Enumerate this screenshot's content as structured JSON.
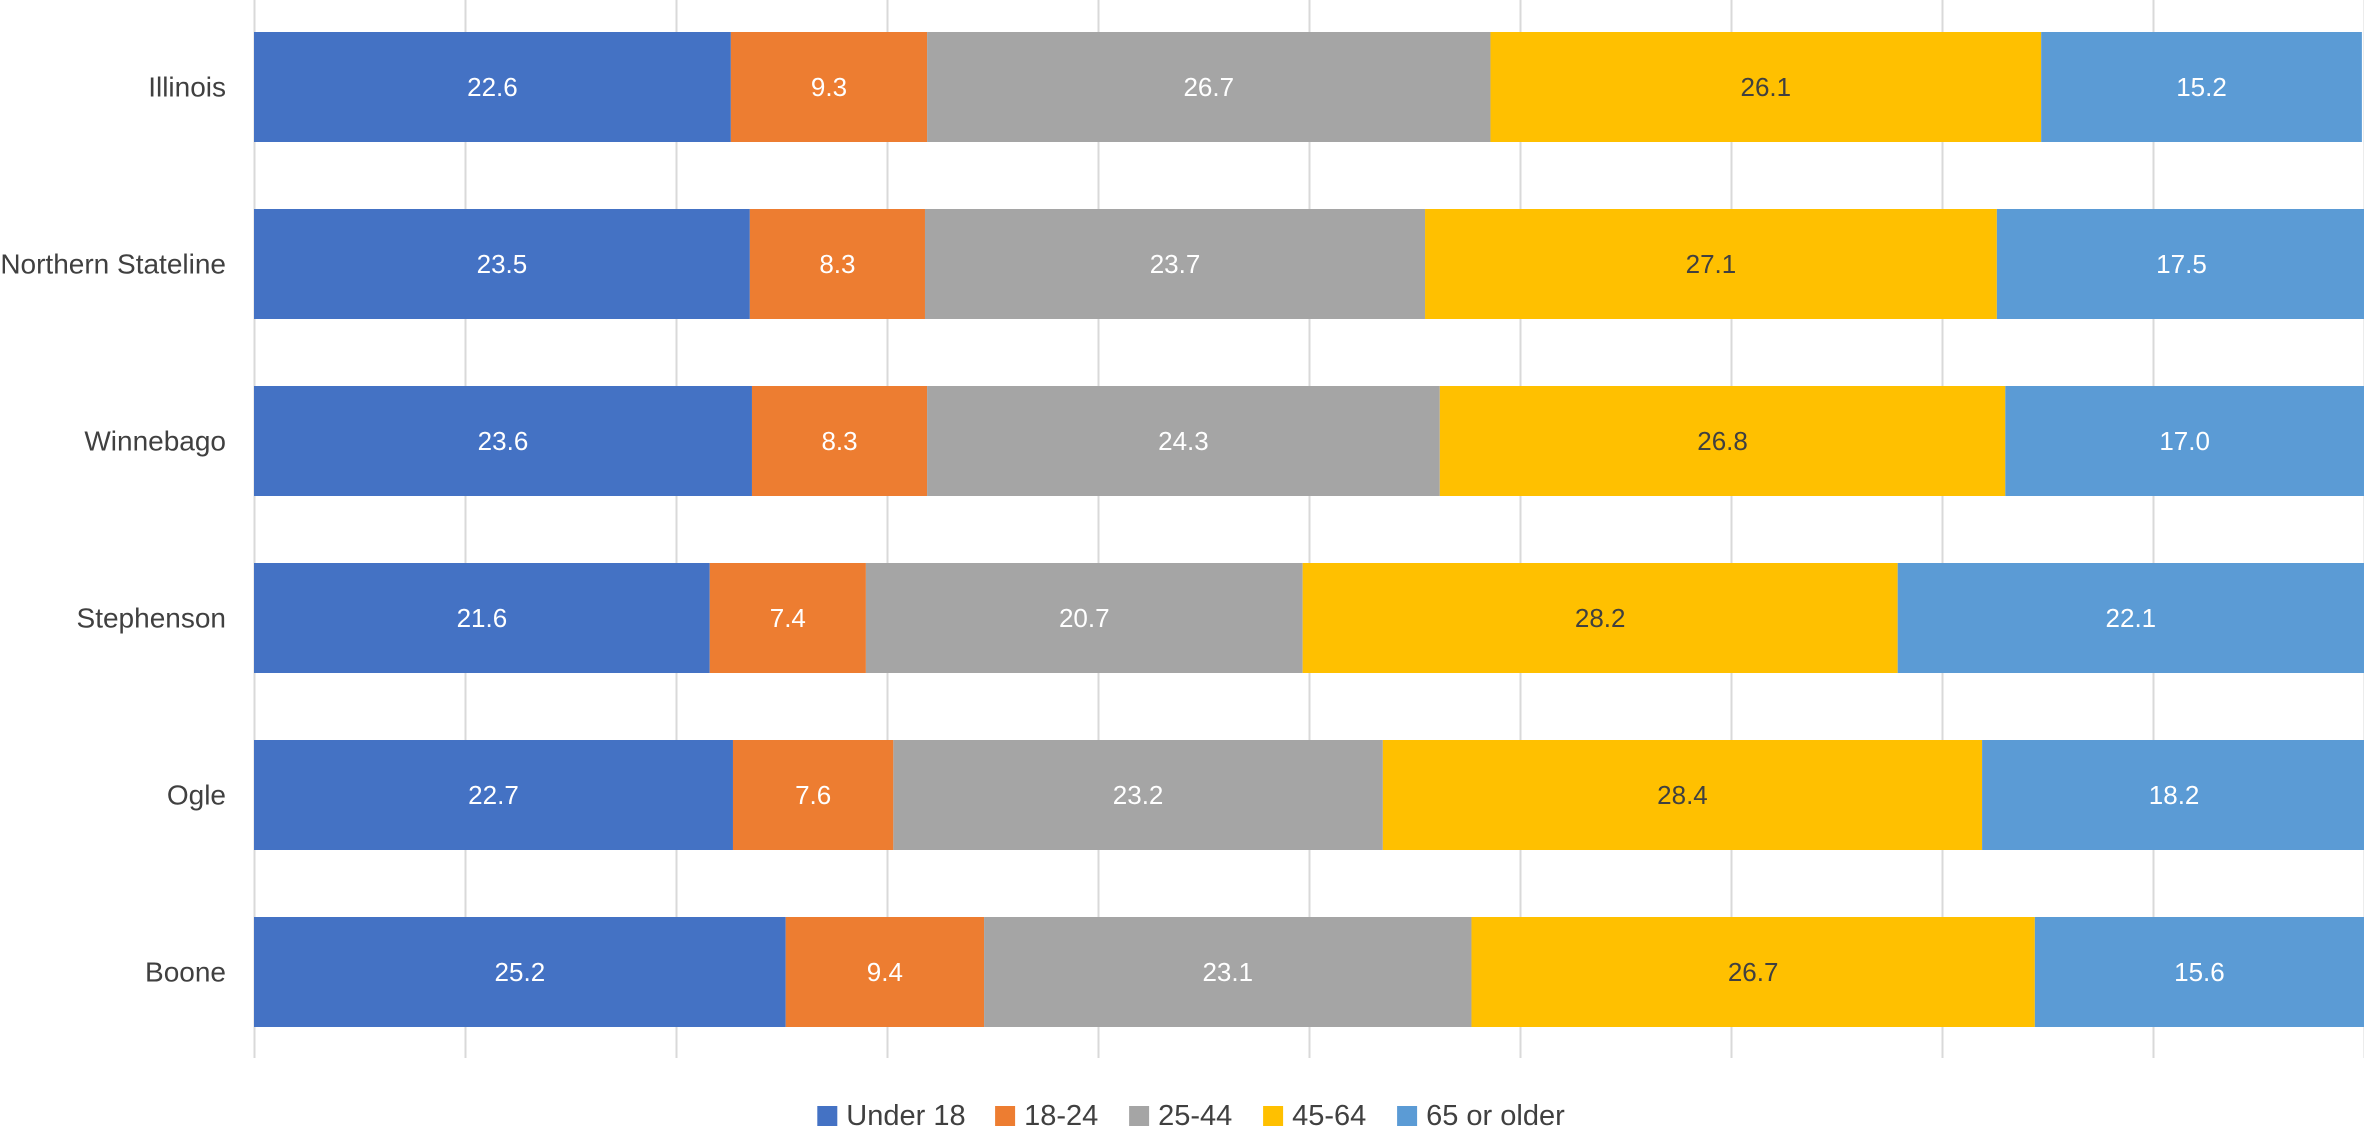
{
  "chart_data": {
    "type": "bar",
    "orientation": "horizontal",
    "stacked": true,
    "categories": [
      "Illinois",
      "Northern Stateline",
      "Winnebago",
      "Stephenson",
      "Ogle",
      "Boone"
    ],
    "series": [
      {
        "name": "Under 18",
        "color": "#4472C4",
        "label_color": "#FFFFFF",
        "values": [
          22.6,
          23.5,
          23.6,
          21.6,
          22.7,
          25.2
        ]
      },
      {
        "name": "18-24",
        "color": "#ED7D31",
        "label_color": "#FFFFFF",
        "values": [
          9.3,
          8.3,
          8.3,
          7.4,
          7.6,
          9.4
        ]
      },
      {
        "name": "25-44",
        "color": "#A5A5A5",
        "label_color": "#FFFFFF",
        "values": [
          26.7,
          23.7,
          24.3,
          20.7,
          23.2,
          23.1
        ]
      },
      {
        "name": "45-64",
        "color": "#FFC000",
        "label_color": "#404040",
        "values": [
          26.1,
          27.1,
          26.8,
          28.2,
          28.4,
          26.7
        ]
      },
      {
        "name": "65 or older",
        "color": "#5B9BD5",
        "label_color": "#FFFFFF",
        "values": [
          15.2,
          17.5,
          17.0,
          22.1,
          18.2,
          15.6
        ]
      }
    ],
    "xlim": [
      0,
      100
    ],
    "grid": true,
    "legend": "bottom",
    "data_labels": true
  }
}
